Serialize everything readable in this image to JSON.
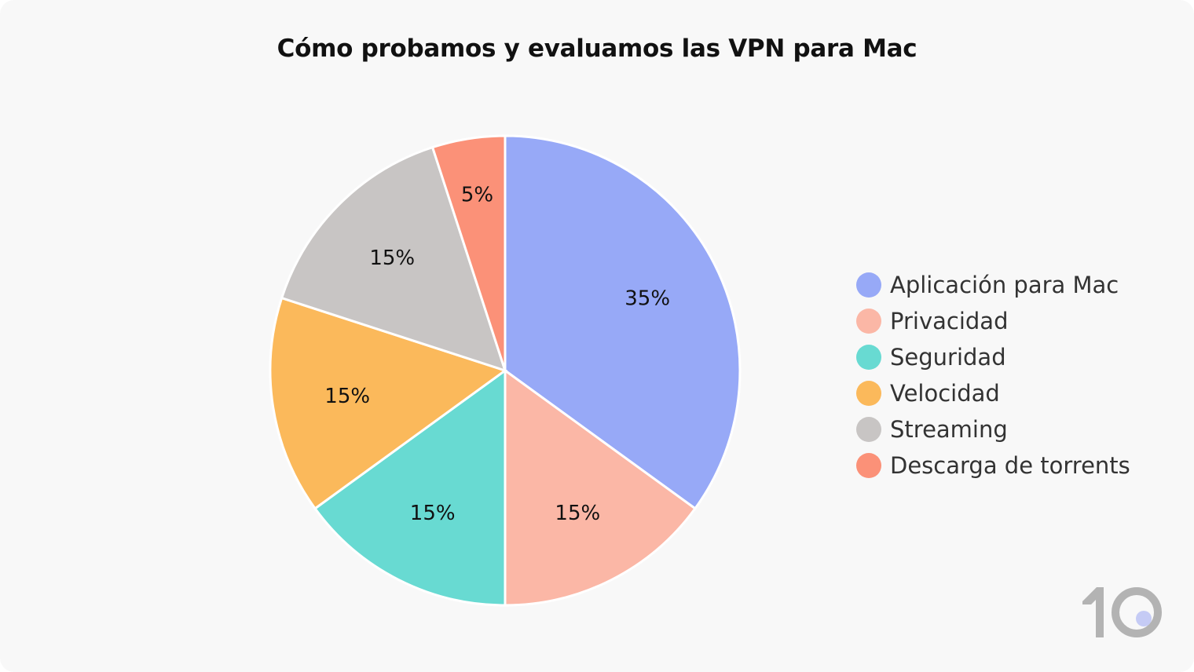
{
  "chart_data": {
    "type": "pie",
    "title": "Cómo probamos y evaluamos las VPN para Mac",
    "legend_position": "right",
    "slices": [
      {
        "label": "Aplicación para Mac",
        "value": 35,
        "display": "35%",
        "color": "#97a9f7"
      },
      {
        "label": "Privacidad",
        "value": 15,
        "display": "15%",
        "color": "#fbb7a6"
      },
      {
        "label": "Seguridad",
        "value": 15,
        "display": "15%",
        "color": "#68dad2"
      },
      {
        "label": "Velocidad",
        "value": 15,
        "display": "15%",
        "color": "#fbb95b"
      },
      {
        "label": "Streaming",
        "value": 15,
        "display": "15%",
        "color": "#c8c5c4"
      },
      {
        "label": "Descarga de torrents",
        "value": 5,
        "display": "5%",
        "color": "#fb9178"
      }
    ]
  },
  "logo": {
    "text": "10",
    "color": "#b3b3b3",
    "dot_color": "#c5cbf5"
  }
}
